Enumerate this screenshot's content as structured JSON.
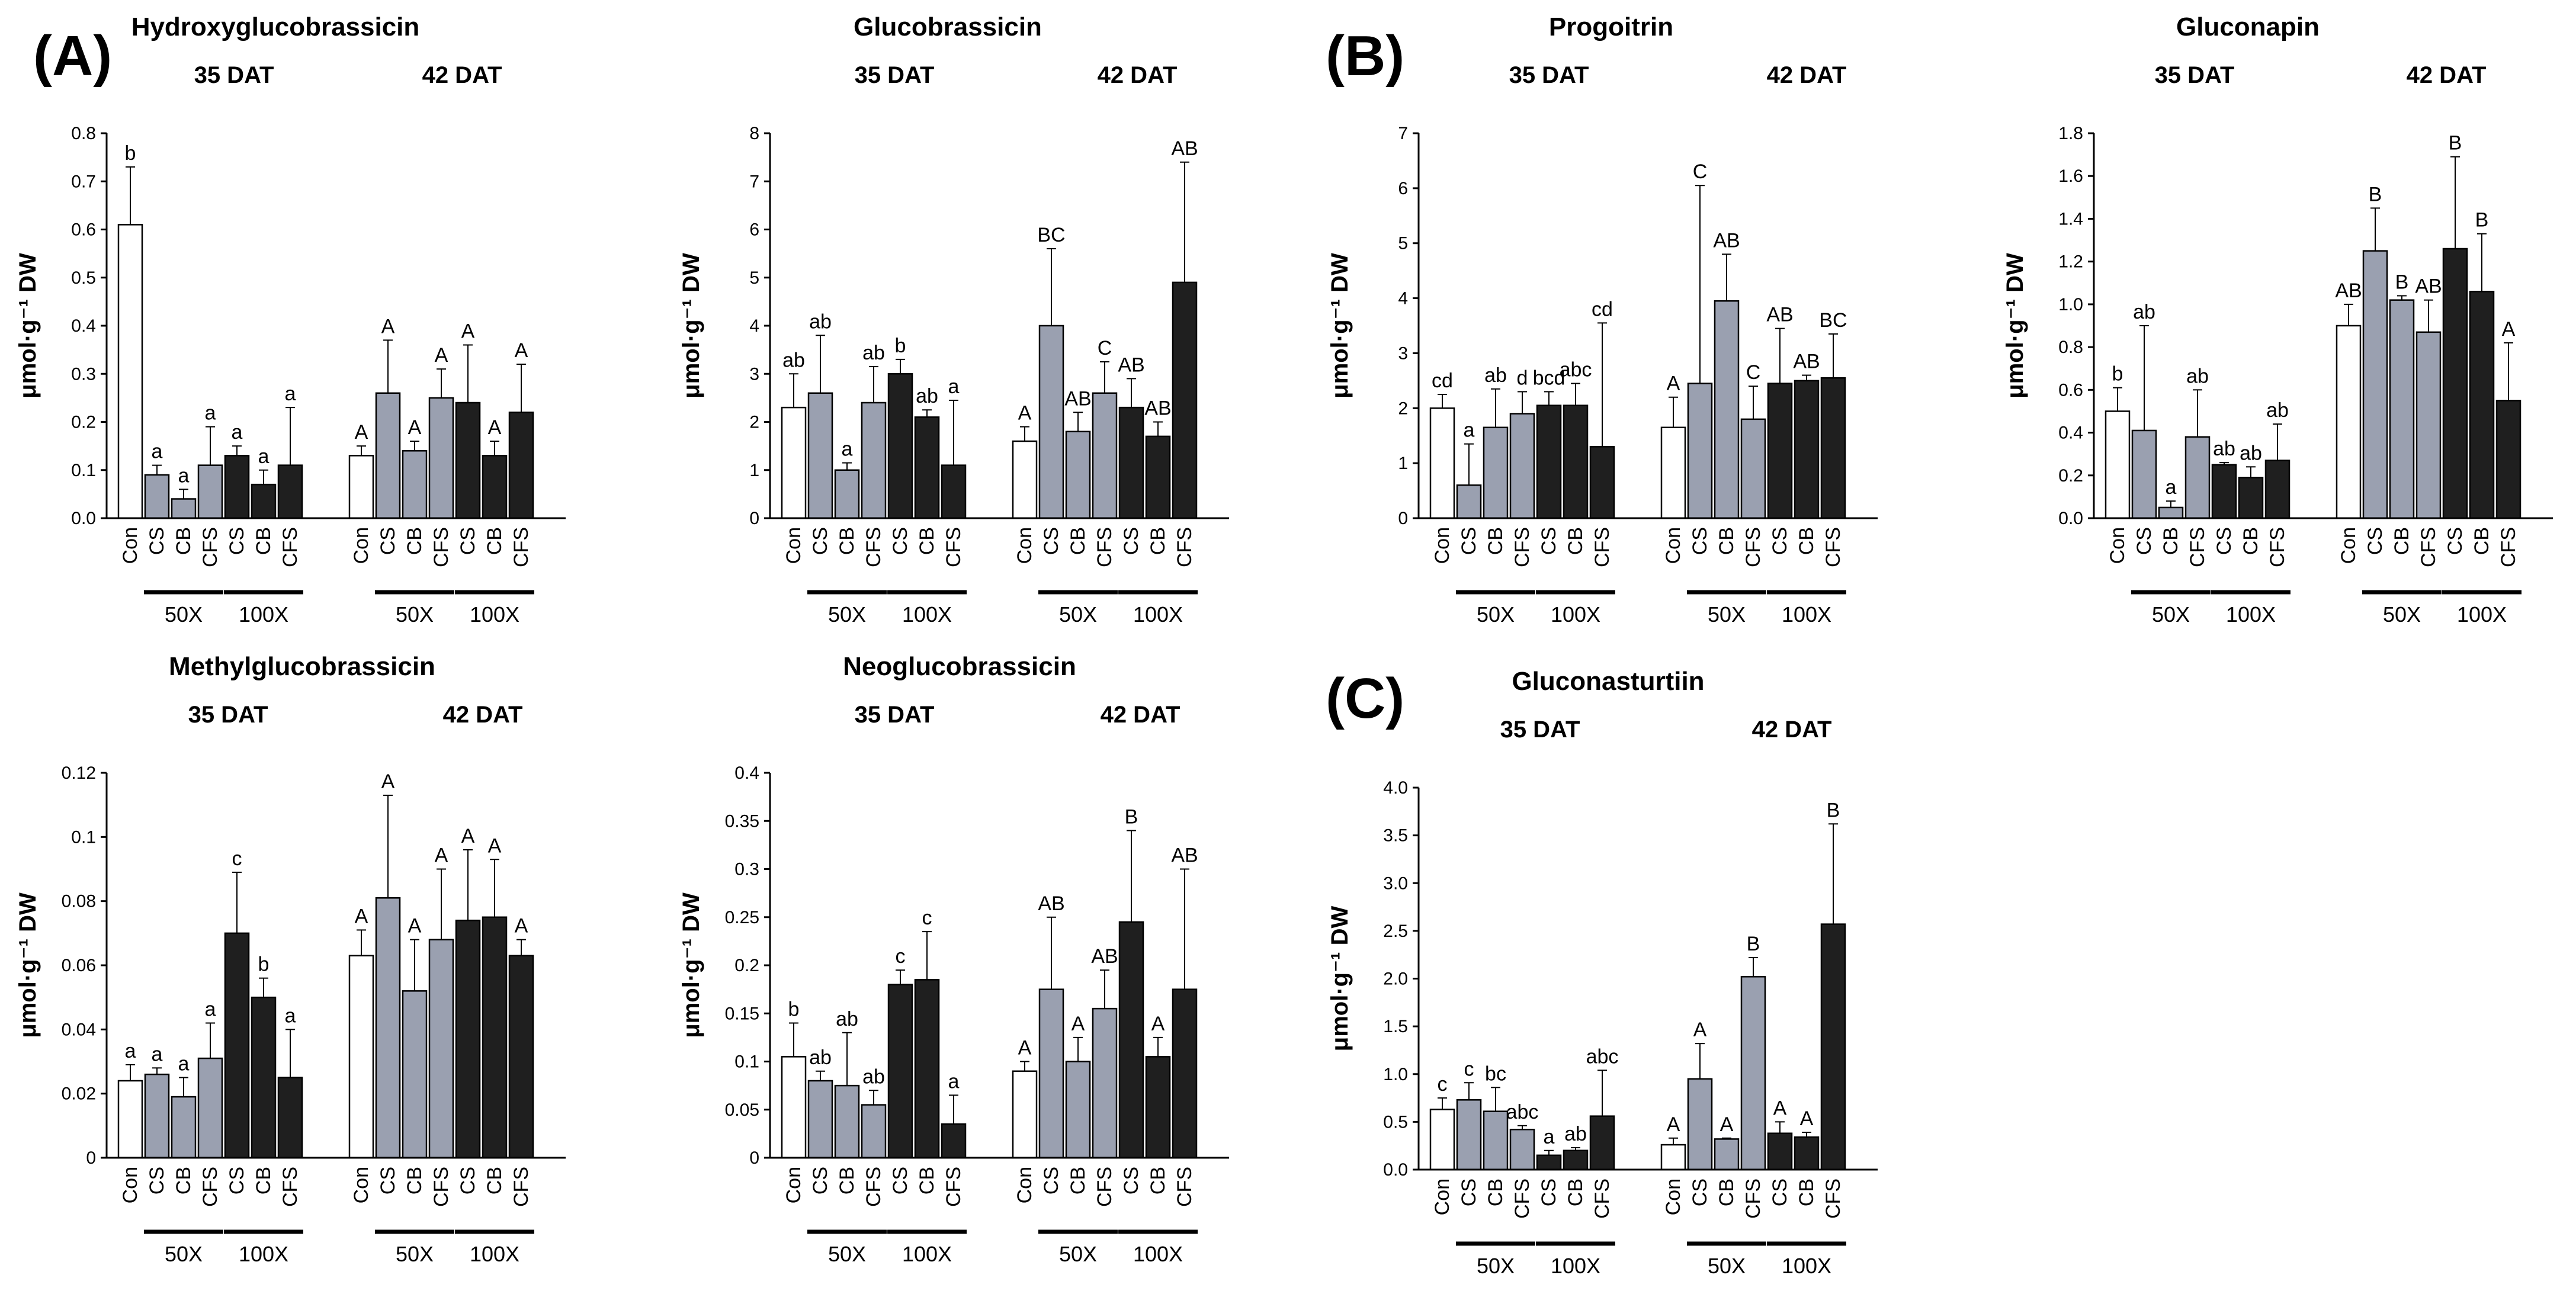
{
  "panel_labels": [
    "(A)",
    "(B)",
    "(C)"
  ],
  "colors": {
    "control": "#ffffff",
    "x50": "#9aa0b0",
    "x100": "#1f1f1f",
    "stroke": "#000000"
  },
  "chart_data": [
    {
      "type": "bar",
      "title": "Hydroxyglucobrassicin",
      "ylabel": "μmol·g⁻¹ DW",
      "ylim": [
        0,
        0.8
      ],
      "yticks": [
        "0.0",
        "0.1",
        "0.2",
        "0.3",
        "0.4",
        "0.5",
        "0.6",
        "0.7",
        "0.8"
      ],
      "groups": [
        {
          "label": "35 DAT",
          "categories": [
            "Con",
            "CS",
            "CB",
            "CFS",
            "CS",
            "CB",
            "CFS"
          ],
          "values": [
            0.61,
            0.09,
            0.04,
            0.11,
            0.13,
            0.07,
            0.11
          ],
          "errors": [
            0.12,
            0.02,
            0.02,
            0.08,
            0.02,
            0.03,
            0.12
          ],
          "letters": [
            "b",
            "a",
            "a",
            "a",
            "a",
            "a",
            "a"
          ]
        },
        {
          "label": "42 DAT",
          "categories": [
            "Con",
            "CS",
            "CB",
            "CFS",
            "CS",
            "CB",
            "CFS"
          ],
          "values": [
            0.13,
            0.26,
            0.14,
            0.25,
            0.24,
            0.13,
            0.22
          ],
          "errors": [
            0.02,
            0.11,
            0.02,
            0.06,
            0.12,
            0.03,
            0.1
          ],
          "letters": [
            "A",
            "A",
            "A",
            "A",
            "A",
            "A",
            "A"
          ]
        }
      ],
      "dose_labels": [
        "50X",
        "100X"
      ]
    },
    {
      "type": "bar",
      "title": "Glucobrassicin",
      "ylabel": "μmol·g⁻¹ DW",
      "ylim": [
        0,
        8
      ],
      "yticks": [
        "0",
        "1",
        "2",
        "3",
        "4",
        "5",
        "6",
        "7",
        "8"
      ],
      "groups": [
        {
          "label": "35 DAT",
          "categories": [
            "Con",
            "CS",
            "CB",
            "CFS",
            "CS",
            "CB",
            "CFS"
          ],
          "values": [
            2.3,
            2.6,
            1.0,
            2.4,
            3.0,
            2.1,
            1.1
          ],
          "errors": [
            0.7,
            1.2,
            0.15,
            0.75,
            0.3,
            0.15,
            1.35
          ],
          "letters": [
            "ab",
            "ab",
            "a",
            "ab",
            "b",
            "ab",
            "a"
          ]
        },
        {
          "label": "42 DAT",
          "categories": [
            "Con",
            "CS",
            "CB",
            "CFS",
            "CS",
            "CB",
            "CFS"
          ],
          "values": [
            1.6,
            4.0,
            1.8,
            2.6,
            2.3,
            1.7,
            4.9
          ],
          "errors": [
            0.3,
            1.6,
            0.4,
            0.65,
            0.6,
            0.3,
            2.5
          ],
          "letters": [
            "A",
            "BC",
            "AB",
            "C",
            "AB",
            "AB",
            "AB"
          ]
        }
      ],
      "dose_labels": [
        "50X",
        "100X"
      ]
    },
    {
      "type": "bar",
      "title": "Progoitrin",
      "ylabel": "μmol·g⁻¹ DW",
      "ylim": [
        0,
        7
      ],
      "yticks": [
        "0",
        "1",
        "2",
        "3",
        "4",
        "5",
        "6",
        "7"
      ],
      "groups": [
        {
          "label": "35 DAT",
          "categories": [
            "Con",
            "CS",
            "CB",
            "CFS",
            "CS",
            "CB",
            "CFS"
          ],
          "values": [
            2.0,
            0.6,
            1.65,
            1.9,
            2.05,
            2.05,
            1.3
          ],
          "errors": [
            0.25,
            0.75,
            0.7,
            0.4,
            0.25,
            0.4,
            2.25
          ],
          "letters": [
            "cd",
            "a",
            "ab",
            "d",
            "bcd",
            "abc",
            "cd"
          ]
        },
        {
          "label": "42 DAT",
          "categories": [
            "Con",
            "CS",
            "CB",
            "CFS",
            "CS",
            "CB",
            "CFS"
          ],
          "values": [
            1.65,
            2.45,
            3.95,
            1.8,
            2.45,
            2.5,
            2.55
          ],
          "errors": [
            0.55,
            3.6,
            0.85,
            0.6,
            1.0,
            0.1,
            0.8
          ],
          "letters": [
            "A",
            "C",
            "AB",
            "C",
            "AB",
            "AB",
            "BC"
          ]
        }
      ],
      "dose_labels": [
        "50X",
        "100X"
      ]
    },
    {
      "type": "bar",
      "title": "Gluconapin",
      "ylabel": "μmol·g⁻¹ DW",
      "ylim": [
        0,
        1.8
      ],
      "yticks": [
        "0.0",
        "0.2",
        "0.4",
        "0.6",
        "0.8",
        "1.0",
        "1.2",
        "1.4",
        "1.6",
        "1.8"
      ],
      "groups": [
        {
          "label": "35 DAT",
          "categories": [
            "Con",
            "CS",
            "CB",
            "CFS",
            "CS",
            "CB",
            "CFS"
          ],
          "values": [
            0.5,
            0.41,
            0.05,
            0.38,
            0.25,
            0.19,
            0.27
          ],
          "errors": [
            0.11,
            0.49,
            0.03,
            0.22,
            0.01,
            0.05,
            0.17
          ],
          "letters": [
            "b",
            "ab",
            "a",
            "ab",
            "ab",
            "ab",
            "ab"
          ]
        },
        {
          "label": "42 DAT",
          "categories": [
            "Con",
            "CS",
            "CB",
            "CFS",
            "CS",
            "CB",
            "CFS"
          ],
          "values": [
            0.9,
            1.25,
            1.02,
            0.87,
            1.26,
            1.06,
            0.55
          ],
          "errors": [
            0.1,
            0.2,
            0.02,
            0.15,
            0.43,
            0.27,
            0.27
          ],
          "letters": [
            "AB",
            "B",
            "B",
            "AB",
            "B",
            "B",
            "A"
          ]
        }
      ],
      "dose_labels": [
        "50X",
        "100X"
      ]
    },
    {
      "type": "bar",
      "title": "Methylglucobrassicin",
      "ylabel": "μmol·g⁻¹ DW",
      "ylim": [
        0,
        0.12
      ],
      "yticks": [
        "0",
        "0.02",
        "0.04",
        "0.06",
        "0.08",
        "0.1",
        "0.12"
      ],
      "groups": [
        {
          "label": "35 DAT",
          "categories": [
            "Con",
            "CS",
            "CB",
            "CFS",
            "CS",
            "CB",
            "CFS"
          ],
          "values": [
            0.024,
            0.026,
            0.019,
            0.031,
            0.07,
            0.05,
            0.025
          ],
          "errors": [
            0.005,
            0.002,
            0.006,
            0.011,
            0.019,
            0.006,
            0.015
          ],
          "letters": [
            "a",
            "a",
            "a",
            "a",
            "c",
            "b",
            "a"
          ]
        },
        {
          "label": "42 DAT",
          "categories": [
            "Con",
            "CS",
            "CB",
            "CFS",
            "CS",
            "CB",
            "CFS"
          ],
          "values": [
            0.063,
            0.081,
            0.052,
            0.068,
            0.074,
            0.075,
            0.063
          ],
          "errors": [
            0.008,
            0.032,
            0.016,
            0.022,
            0.022,
            0.018,
            0.005
          ],
          "letters": [
            "A",
            "A",
            "A",
            "A",
            "A",
            "A",
            "A"
          ]
        }
      ],
      "dose_labels": [
        "50X",
        "100X"
      ]
    },
    {
      "type": "bar",
      "title": "Neoglucobrassicin",
      "ylabel": "μmol·g⁻¹ DW",
      "ylim": [
        0,
        0.4
      ],
      "yticks": [
        "0",
        "0.05",
        "0.1",
        "0.15",
        "0.2",
        "0.25",
        "0.3",
        "0.35",
        "0.4"
      ],
      "groups": [
        {
          "label": "35 DAT",
          "categories": [
            "Con",
            "CS",
            "CB",
            "CFS",
            "CS",
            "CB",
            "CFS"
          ],
          "values": [
            0.105,
            0.08,
            0.075,
            0.055,
            0.18,
            0.185,
            0.035
          ],
          "errors": [
            0.035,
            0.01,
            0.055,
            0.015,
            0.015,
            0.05,
            0.03
          ],
          "letters": [
            "b",
            "ab",
            "ab",
            "ab",
            "c",
            "c",
            "a"
          ]
        },
        {
          "label": "42 DAT",
          "categories": [
            "Con",
            "CS",
            "CB",
            "CFS",
            "CS",
            "CB",
            "CFS"
          ],
          "values": [
            0.09,
            0.175,
            0.1,
            0.155,
            0.245,
            0.105,
            0.175
          ],
          "errors": [
            0.01,
            0.075,
            0.025,
            0.04,
            0.095,
            0.02,
            0.125
          ],
          "letters": [
            "A",
            "AB",
            "A",
            "AB",
            "B",
            "A",
            "AB"
          ]
        }
      ],
      "dose_labels": [
        "50X",
        "100X"
      ]
    },
    {
      "type": "bar",
      "title": "Gluconasturtiin",
      "ylabel": "μmol·g⁻¹ DW",
      "ylim": [
        0,
        4.0
      ],
      "yticks": [
        "0.0",
        "0.5",
        "1.0",
        "1.5",
        "2.0",
        "2.5",
        "3.0",
        "3.5",
        "4.0"
      ],
      "groups": [
        {
          "label": "35 DAT",
          "categories": [
            "Con",
            "CS",
            "CB",
            "CFS",
            "CS",
            "CB",
            "CFS"
          ],
          "values": [
            0.63,
            0.73,
            0.61,
            0.42,
            0.15,
            0.2,
            0.56
          ],
          "errors": [
            0.12,
            0.18,
            0.25,
            0.04,
            0.05,
            0.03,
            0.48
          ],
          "letters": [
            "c",
            "c",
            "bc",
            "abc",
            "a",
            "ab",
            "abc"
          ]
        },
        {
          "label": "42 DAT",
          "categories": [
            "Con",
            "CS",
            "CB",
            "CFS",
            "CS",
            "CB",
            "CFS"
          ],
          "values": [
            0.26,
            0.95,
            0.32,
            2.02,
            0.38,
            0.34,
            2.57
          ],
          "errors": [
            0.07,
            0.37,
            0.01,
            0.2,
            0.12,
            0.05,
            1.05
          ],
          "letters": [
            "A",
            "A",
            "A",
            "B",
            "A",
            "A",
            "B"
          ]
        }
      ],
      "dose_labels": [
        "50X",
        "100X"
      ]
    }
  ]
}
